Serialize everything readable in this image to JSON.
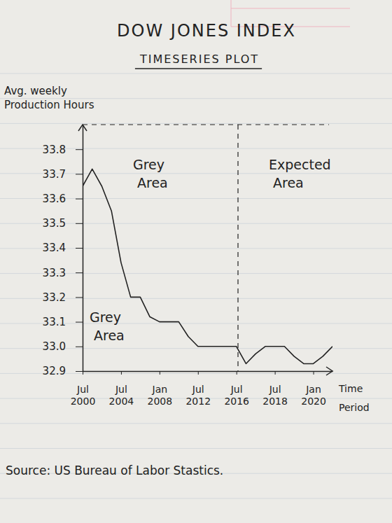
{
  "chart_data": {
    "type": "line",
    "title": "DOW JONES INDEX",
    "subtitle": "TIMESERIES PLOT",
    "y_label": "Avg. weekly Production Hours",
    "x_label": "Time Period",
    "source": "Source: US Bureau of Labor Stastics.",
    "annotations": [
      "Grey Area",
      "Grey Area",
      "Expected Area"
    ],
    "categories": [
      "Jul 2000",
      null,
      null,
      null,
      "Jul 2004",
      null,
      null,
      null,
      "Jan 2008",
      null,
      null,
      null,
      "Jul 2012",
      null,
      null,
      null,
      "Jul 2016",
      null,
      null,
      null,
      "Jul 2018",
      null,
      null,
      null,
      "Jan 2020",
      null,
      null
    ],
    "values": [
      33.65,
      33.72,
      33.65,
      33.55,
      33.34,
      33.2,
      33.2,
      33.12,
      33.1,
      33.1,
      33.1,
      33.04,
      33.0,
      33.0,
      33.0,
      33.0,
      33.0,
      32.93,
      32.97,
      33.0,
      33.0,
      33.0,
      32.96,
      32.93,
      32.93,
      32.96,
      33.0
    ],
    "color": "#222222",
    "line_style": "solid",
    "marker": "none",
    "ylim": [
      32.9,
      33.9
    ],
    "yticks": [
      32.9,
      {
        "value": 33,
        "label": "33.0"
      },
      33.1,
      33.2,
      33.3,
      33.4,
      33.5,
      33.6,
      33.7,
      33.8
    ],
    "grid": false
  }
}
